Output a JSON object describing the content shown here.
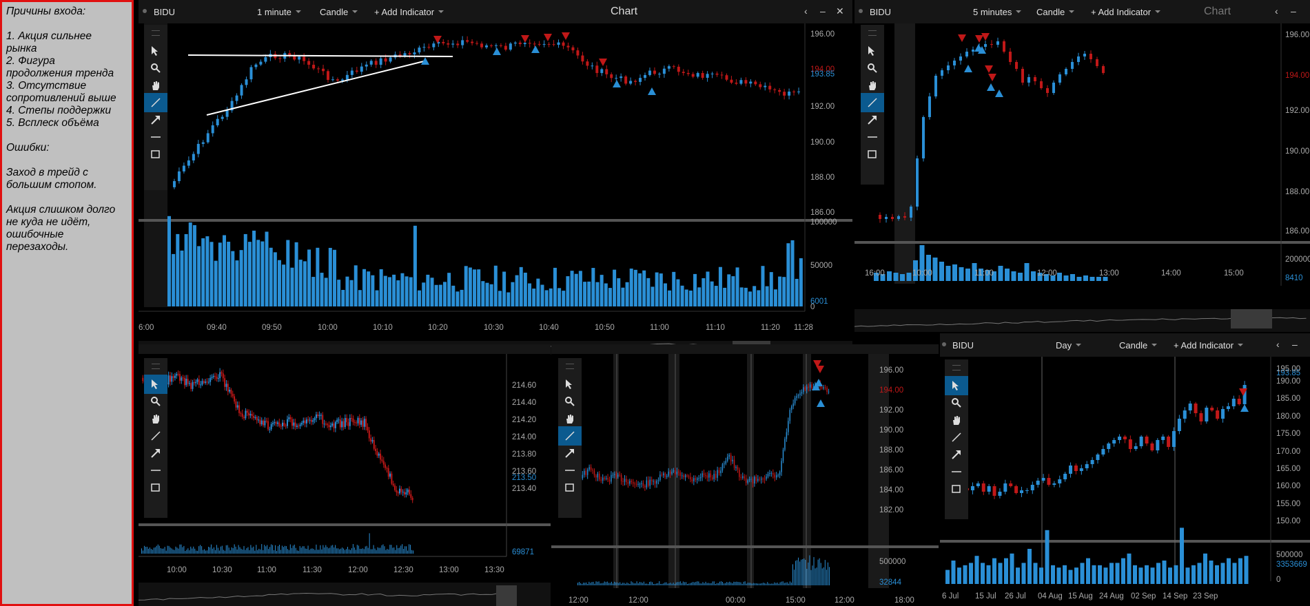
{
  "notes": [
    "Причины входа:",
    "",
    "1. Акция сильнее",
    "рынка",
    "2. Фигура",
    "продолжения тренда",
    "3. Отсутствие",
    "сопротивлений выше",
    "4. Степы поддержки",
    "5. Всплеск объёма",
    "",
    "Ошибки:",
    "",
    "Заход в трейд с",
    "большим стопом.",
    "",
    "Акция слишком долго",
    "не куда не идёт,",
    "ошибочные",
    "перезаходы."
  ],
  "colors": {
    "up": "#2a8fd6",
    "down": "#c01818",
    "accent": "#0b5a8f",
    "notes_bg": "#c0c0c0",
    "notes_border": "#e01010"
  },
  "icons": [
    "arrow-pointer-icon",
    "magnifier-icon",
    "hand-icon",
    "trendline-icon",
    "arrow-icon",
    "horizontal-line-icon",
    "rectangle-icon"
  ],
  "panes": {
    "p1": {
      "symbol": "BIDU",
      "interval": "1 minute",
      "type": "Candle",
      "add": "+ Add Indicator",
      "title": "Chart",
      "price_labels": [
        "196.00",
        "194.00",
        "192.00",
        "190.00",
        "188.00",
        "186.00"
      ],
      "current_price": "193.85",
      "current_price2": "194.00",
      "volume_labels": [
        "100000",
        "50000",
        "0"
      ],
      "volume_current": "6001",
      "time_labels": [
        "6:00",
        "09:40",
        "09:50",
        "10:00",
        "10:10",
        "10:20",
        "10:30",
        "10:40",
        "10:50",
        "11:00",
        "11:10",
        "11:20",
        "11:28"
      ]
    },
    "p2": {
      "symbol": "BIDU",
      "interval": "5 minutes",
      "type": "Candle",
      "add": "+ Add Indicator",
      "title": "Chart",
      "price_labels": [
        "196.00",
        "192.00",
        "190.00",
        "188.00",
        "186.00"
      ],
      "current_price": "194.00",
      "volume_labels": [
        "200000",
        "8410"
      ],
      "time_labels": [
        "16:00",
        "10:00",
        "11:00",
        "12:00",
        "13:00",
        "14:00",
        "15:00"
      ]
    },
    "p3": {
      "price_labels": [
        "214.60",
        "214.40",
        "214.20",
        "214.00",
        "213.80",
        "213.60",
        "213.40"
      ],
      "current_price": "213.50",
      "volume_current": "69871",
      "time_labels": [
        "10:00",
        "10:30",
        "11:00",
        "11:30",
        "12:00",
        "12:30",
        "13:00",
        "13:30"
      ]
    },
    "p4": {
      "price_labels": [
        "196.00",
        "192.00",
        "190.00",
        "188.00",
        "186.00",
        "184.00",
        "182.00"
      ],
      "current_price": "194.00",
      "volume_labels": [
        "500000",
        "32844"
      ],
      "time_labels": [
        "12:00",
        "12:00",
        "00:00",
        "15:00",
        "12:00",
        "18:00"
      ]
    },
    "p5": {
      "symbol": "BIDU",
      "interval": "Day",
      "type": "Candle",
      "add": "+ Add Indicator",
      "price_labels": [
        "195.00",
        "190.00",
        "185.00",
        "180.00",
        "175.00",
        "170.00",
        "165.00",
        "160.00",
        "155.00",
        "150.00"
      ],
      "current_price": "193.85",
      "volume_labels": [
        "500000",
        "3353669",
        "0"
      ],
      "time_labels": [
        "6 Jul",
        "15 Jul",
        "26 Jul",
        "04 Aug",
        "15 Aug",
        "24 Aug",
        "02 Sep",
        "14 Sep",
        "23 Sep"
      ]
    }
  }
}
